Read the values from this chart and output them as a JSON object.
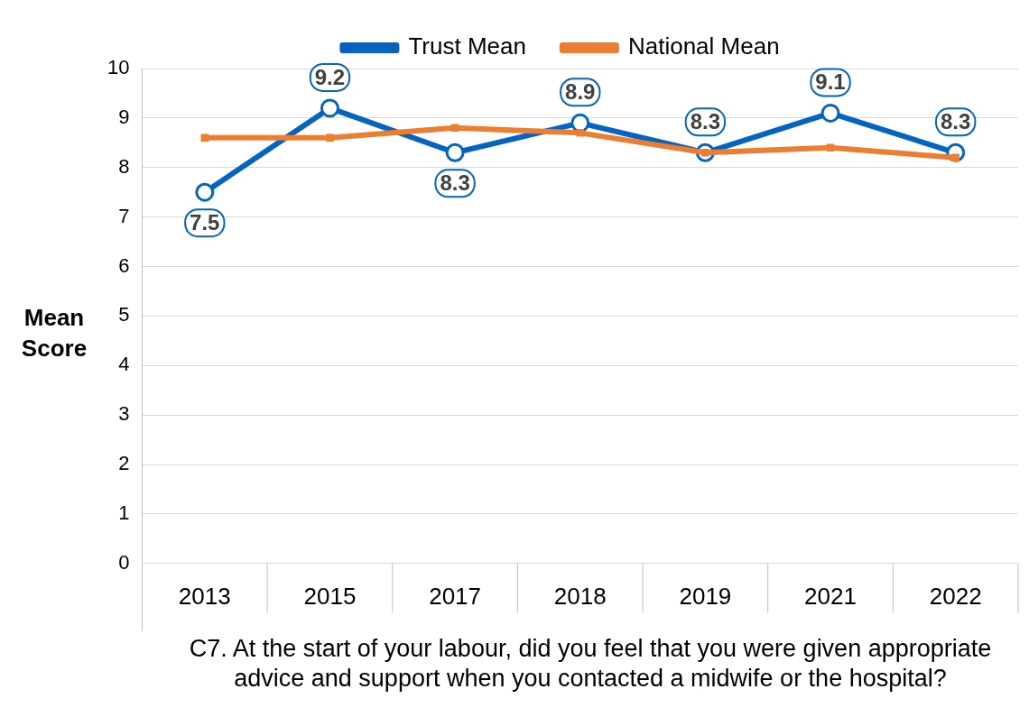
{
  "chart_data": {
    "type": "line",
    "xlabel": "C7. At the start of your labour, did you feel that you were given appropriate advice and support when you contacted a midwife or the hospital?",
    "ylabel": "Mean Score",
    "categories": [
      "2013",
      "2015",
      "2017",
      "2018",
      "2019",
      "2021",
      "2022"
    ],
    "series": [
      {
        "name": "Trust Mean",
        "color": "#0563c1",
        "marker": "circle",
        "values": [
          7.5,
          9.2,
          8.3,
          8.9,
          8.3,
          9.1,
          8.3
        ],
        "value_labels": [
          "7.5",
          "9.2",
          "8.3",
          "8.9",
          "8.3",
          "9.1",
          "8.3"
        ]
      },
      {
        "name": "National Mean",
        "color": "#ed7d31",
        "marker": "square",
        "values": [
          8.6,
          8.6,
          8.8,
          8.7,
          8.3,
          8.4,
          8.2
        ]
      }
    ],
    "ylim": [
      0,
      10
    ],
    "yticks": [
      0,
      1,
      2,
      3,
      4,
      5,
      6,
      7,
      8,
      9,
      10
    ],
    "grid": "y",
    "legend": "top",
    "line_style": "solid"
  }
}
